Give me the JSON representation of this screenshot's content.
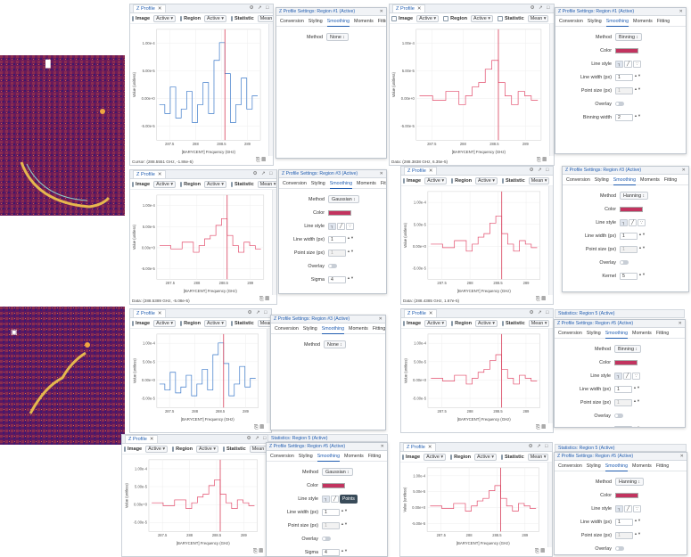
{
  "common": {
    "tab_title": "Z Profile",
    "image_label": "Image",
    "region_label": "Region",
    "statistic_label": "Statistic",
    "active": "Active",
    "mean": "Mean",
    "xlabel": "[BARYCENT] Frequency (GHz)",
    "ylabel": "Value (unitless)"
  },
  "colors": {
    "accent": "#215db0",
    "profile": "#3a78c9",
    "smoothed": "#e24a6a",
    "swatch": "#c2335f",
    "marker": "#d63a56"
  },
  "tabs": [
    "Conversion",
    "Styling",
    "Smoothing",
    "Moments",
    "Fitting"
  ],
  "thumbnails": [
    {
      "marker": "█"
    },
    {
      "marker": "▣"
    }
  ],
  "panels": [
    {
      "cursor": "Cursor: (288.5551 GHz, -1.86e-5)",
      "settings_title": "Z Profile Settings: Region #1 (Active)",
      "method": "None",
      "fields": {}
    },
    {
      "cursor": "Data: (288.3838 GHz, 6.35e-5)",
      "settings_title": "Z Profile Settings: Region #1 (Active)",
      "method": "Binning",
      "fields": {
        "line_width": "1",
        "point_size": "1",
        "binning_width": "2"
      }
    },
    {
      "cursor": "Data: (288.5389 GHz, -5.08e-5)",
      "settings_title": "Z Profile Settings: Region #3 (Active)",
      "method": "Gaussian",
      "fields": {
        "line_width": "1",
        "point_size": "1",
        "sigma": "4"
      }
    },
    {
      "cursor": "Data: (288.4385 GHz, 1.67e-5)",
      "settings_title": "Z Profile Settings: Region #3 (Active)",
      "method": "Hanning",
      "fields": {
        "line_width": "1",
        "point_size": "1",
        "kernel": "5"
      }
    },
    {
      "cursor": "",
      "settings_title": "Z Profile Settings: Region #3 (Active)",
      "stat_title": "",
      "method": "None",
      "fields": {}
    },
    {
      "cursor": "",
      "settings_title": "Z Profile Settings: Region #5 (Active)",
      "stat_title": "Statistics: Region 5 (Active)",
      "method": "Binning",
      "fields": {
        "line_width": "1",
        "point_size": "1",
        "binning_width": "2"
      }
    },
    {
      "cursor": "",
      "settings_title": "Z Profile Settings: Region #5 (Active)",
      "stat_title": "Statistics: Region 5 (Active)",
      "method": "Gaussian",
      "fields": {
        "line_width": "1",
        "point_size": "1",
        "sigma": "4"
      },
      "tooltip": "Points"
    },
    {
      "cursor": "",
      "settings_title": "Z Profile Settings: Region #5 (Active)",
      "stat_title": "Statistics: Region 5 (Active)",
      "method": "Hanning",
      "fields": {
        "line_width": "1",
        "point_size": "1",
        "kernel": "5"
      }
    }
  ],
  "labels": {
    "method": "Method",
    "color": "Color",
    "line_style": "Line style",
    "line_width": "Line width (px)",
    "point_size": "Point size (px)",
    "overlay": "Overlay",
    "binning_width": "Binning width",
    "sigma": "Sigma",
    "kernel": "Kernel"
  },
  "chart_data": [
    {
      "type": "line",
      "x": [
        287.3,
        287.4,
        287.5,
        287.6,
        287.7,
        287.8,
        287.9,
        288.0,
        288.1,
        288.2,
        288.3,
        288.4,
        288.5,
        288.6,
        288.7,
        288.8,
        288.9,
        289.0
      ],
      "y": [
        -0.2,
        -0.4,
        0.2,
        -0.5,
        -0.3,
        0.1,
        -0.6,
        -0.2,
        0.3,
        -0.4,
        0.8,
        1.2,
        0.5,
        -0.6,
        -0.2,
        0.4,
        -0.3,
        0.0
      ],
      "yticks": [
        "1.00e-4",
        "5.00e-5",
        "0.00e+0",
        "-5.00e-5"
      ],
      "xticks": [
        "287.5",
        "288",
        "288.5",
        "289"
      ]
    },
    {
      "type": "line",
      "x": [
        287.3,
        287.4,
        287.5,
        287.6,
        287.7,
        287.8,
        287.9,
        288.0,
        288.1,
        288.2,
        288.3,
        288.4,
        288.5,
        288.6,
        288.7,
        288.8,
        288.9,
        289.0
      ],
      "y": [
        0.0,
        0.0,
        -0.1,
        -0.1,
        0.1,
        0.1,
        -0.2,
        0.0,
        0.2,
        0.3,
        0.6,
        0.8,
        0.3,
        0.0,
        -0.2,
        0.1,
        0.0,
        -0.1
      ],
      "yticks": [
        "1.00e-4",
        "5.00e-5",
        "0.00e+0",
        "-5.00e-5"
      ],
      "xticks": [
        "287.5",
        "288",
        "288.5",
        "289"
      ]
    }
  ]
}
